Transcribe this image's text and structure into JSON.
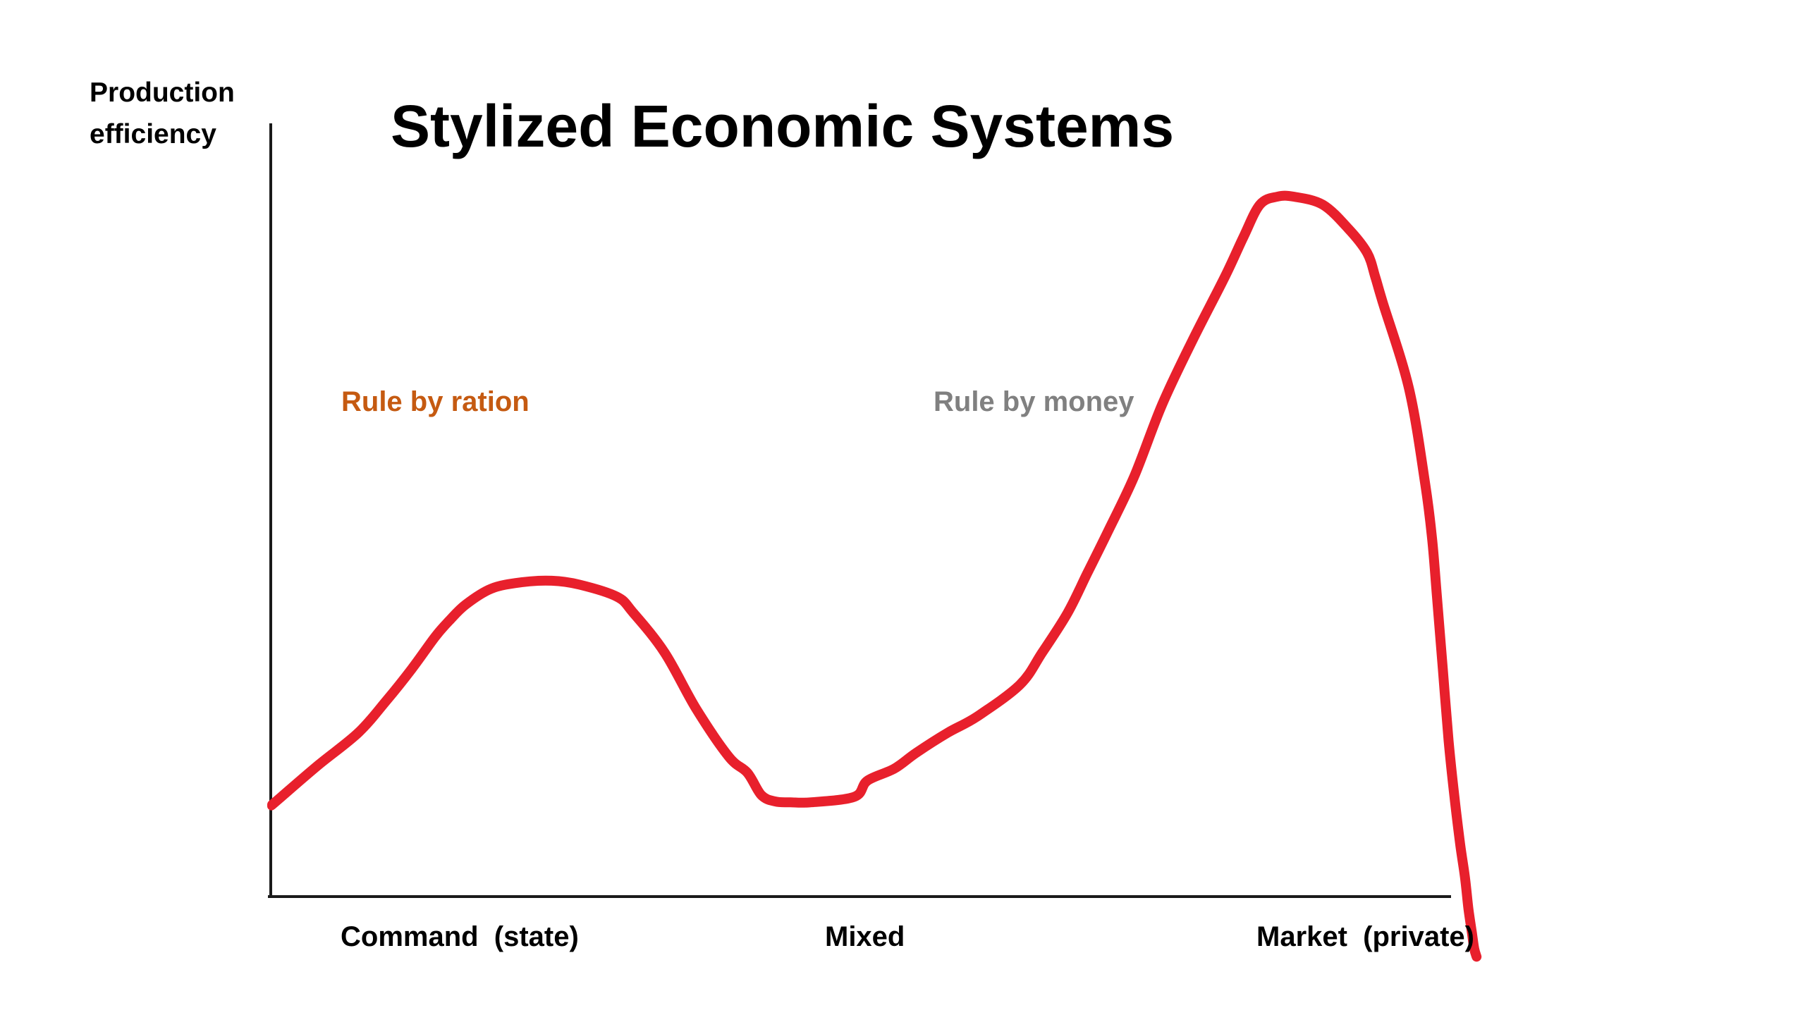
{
  "chart_data": {
    "type": "line",
    "title": "Stylized Economic Systems",
    "ylabel_lines": [
      "Production",
      "efficiency"
    ],
    "xlabel": "",
    "categories": [
      "Command  (state)",
      "Mixed",
      "Market  (private)"
    ],
    "annotations": [
      {
        "text": "Rule by ration",
        "color": "#c55a11",
        "anchor_x": 0.15,
        "anchor_y": 0.67
      },
      {
        "text": "Rule by money",
        "color": "#808080",
        "anchor_x": 0.65,
        "anchor_y": 0.67
      }
    ],
    "xlim": [
      0,
      1
    ],
    "ylim": [
      0,
      1
    ],
    "grid": false,
    "series": [
      {
        "color": "#e8202c",
        "x": [
          0.0,
          0.008,
          0.04,
          0.074,
          0.098,
          0.12,
          0.14,
          0.152,
          0.166,
          0.188,
          0.214,
          0.24,
          0.264,
          0.296,
          0.31,
          0.337,
          0.364,
          0.392,
          0.408,
          0.42,
          0.432,
          0.445,
          0.463,
          0.5,
          0.511,
          0.534,
          0.553,
          0.58,
          0.605,
          0.642,
          0.661,
          0.683,
          0.7,
          0.717,
          0.74,
          0.764,
          0.79,
          0.818,
          0.834,
          0.848,
          0.863,
          0.877,
          0.902,
          0.924,
          0.94,
          0.947,
          0.953,
          0.976,
          0.99,
          0.996,
          1.0,
          1.005,
          1.01,
          1.015,
          1.02,
          1.024,
          1.027,
          1.03,
          1.032,
          1.034
        ],
        "y": [
          0.21,
          0.22,
          0.26,
          0.3,
          0.34,
          0.38,
          0.42,
          0.44,
          0.46,
          0.48,
          0.488,
          0.49,
          0.485,
          0.47,
          0.45,
          0.4,
          0.33,
          0.27,
          0.25,
          0.222,
          0.214,
          0.213,
          0.213,
          0.22,
          0.24,
          0.255,
          0.275,
          0.3,
          0.32,
          0.36,
          0.4,
          0.45,
          0.5,
          0.55,
          0.62,
          0.71,
          0.79,
          0.87,
          0.92,
          0.96,
          0.97,
          0.97,
          0.96,
          0.93,
          0.9,
          0.87,
          0.84,
          0.73,
          0.61,
          0.54,
          0.47,
          0.38,
          0.29,
          0.22,
          0.16,
          0.12,
          0.08,
          0.05,
          0.03,
          0.02
        ]
      }
    ]
  }
}
